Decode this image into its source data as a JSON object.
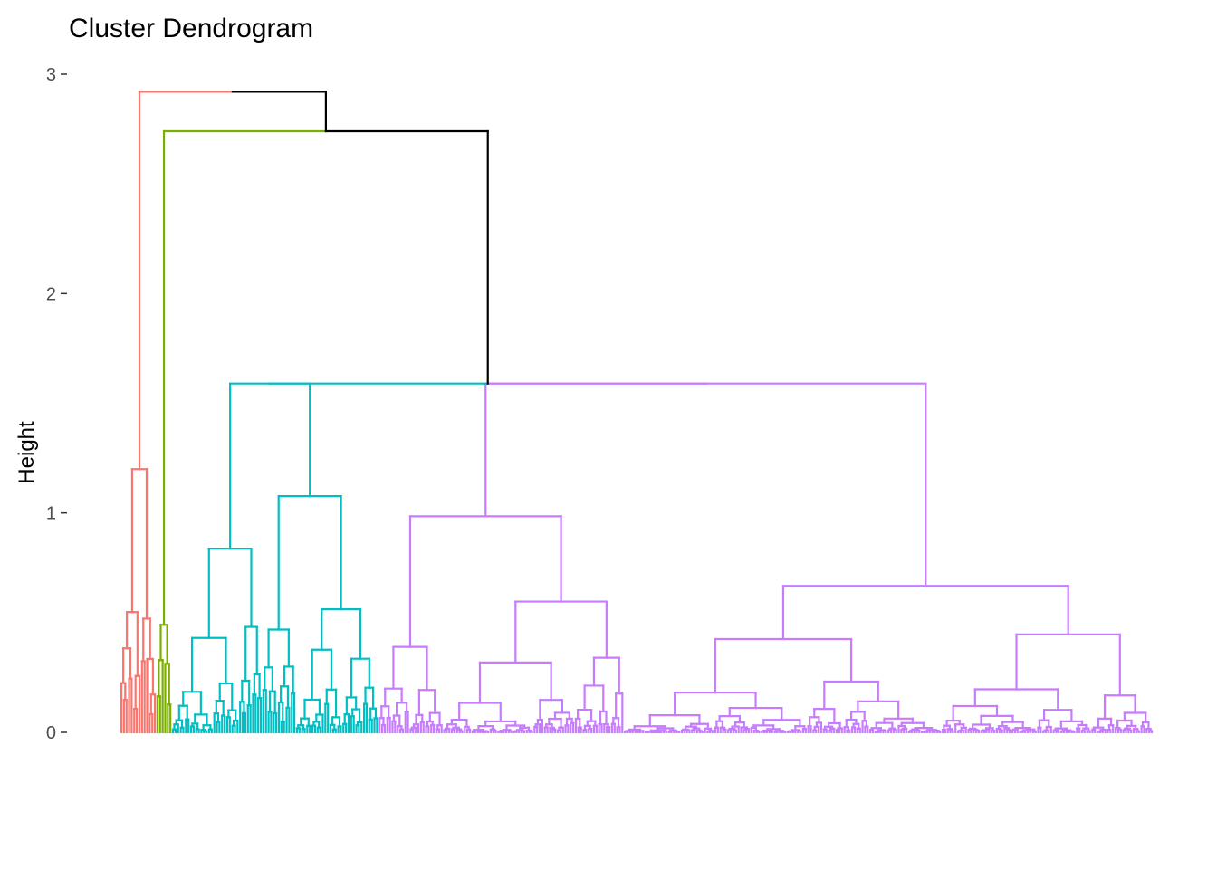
{
  "chart_data": {
    "type": "dendrogram",
    "title": "Cluster Dendrogram",
    "ylabel": "Height",
    "xlabel": "",
    "ylim": [
      0,
      3
    ],
    "yticks": [
      0,
      1,
      2,
      3
    ],
    "grid": false,
    "legend": "none",
    "num_clusters": 4,
    "clusters": [
      {
        "color": "#F8766D",
        "leaves": 14,
        "height": 1.2
      },
      {
        "color": "#7CAE00",
        "leaves": 6,
        "height": 0.49
      },
      {
        "color": "#00BFC4",
        "leaves": 80,
        "height": 1.59
      },
      {
        "color": "#C77CFF",
        "leaves": 300,
        "height": 1.59
      }
    ],
    "merges": [
      {
        "id": "cyan_purple",
        "height": 1.59
      },
      {
        "id": "green_rest",
        "height": 2.74
      },
      {
        "id": "root",
        "height": 2.92
      }
    ],
    "link_color": "#000000"
  }
}
